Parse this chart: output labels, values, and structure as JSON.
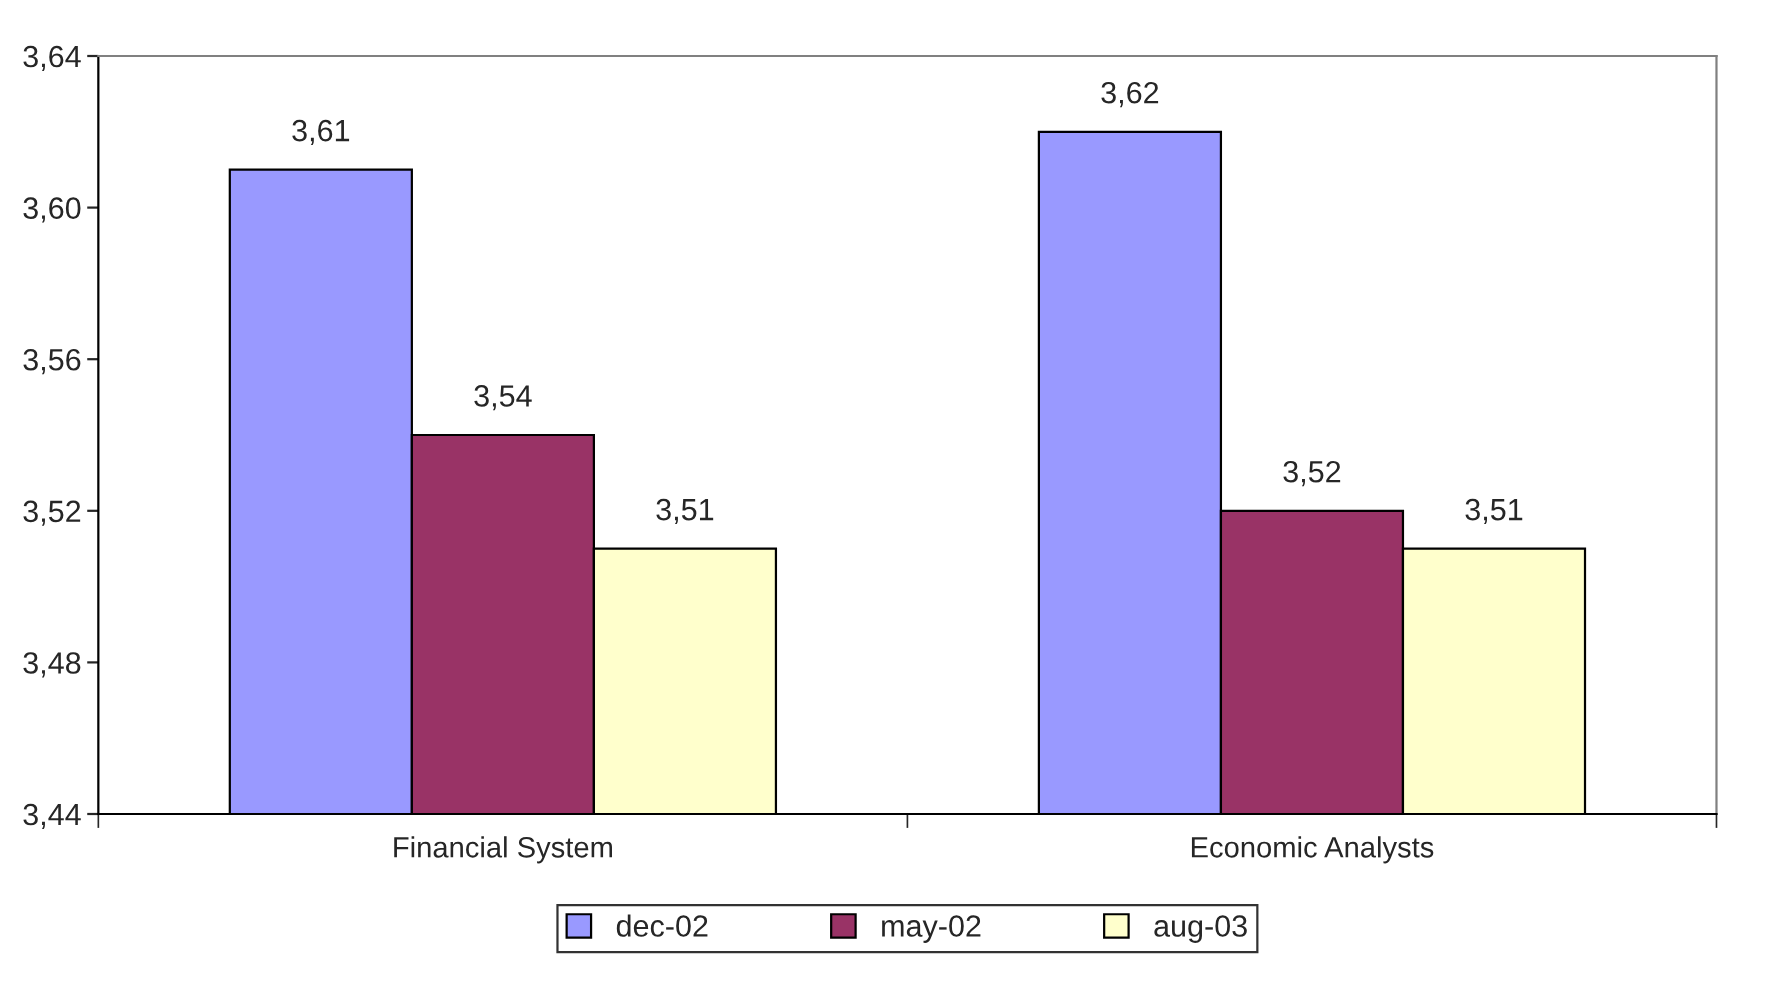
{
  "chart_data": {
    "type": "bar",
    "categories": [
      "Financial System",
      "Economic Analysts"
    ],
    "series": [
      {
        "name": "dec-02",
        "color": "#9999ff",
        "values": [
          3.61,
          3.62
        ],
        "value_labels": [
          "3,61",
          "3,62"
        ]
      },
      {
        "name": "may-02",
        "color": "#993366",
        "values": [
          3.54,
          3.52
        ],
        "value_labels": [
          "3,54",
          "3,52"
        ]
      },
      {
        "name": "aug-03",
        "color": "#ffffcc",
        "values": [
          3.51,
          3.51
        ],
        "value_labels": [
          "3,51",
          "3,51"
        ]
      }
    ],
    "ylim": [
      3.44,
      3.64
    ],
    "yticks": [
      {
        "value": 3.44,
        "label": "3,44"
      },
      {
        "value": 3.48,
        "label": "3,48"
      },
      {
        "value": 3.52,
        "label": "3,52"
      },
      {
        "value": 3.56,
        "label": "3,56"
      },
      {
        "value": 3.6,
        "label": "3,60"
      },
      {
        "value": 3.64,
        "label": "3,64"
      }
    ],
    "grid": false,
    "legend": "bottom"
  }
}
